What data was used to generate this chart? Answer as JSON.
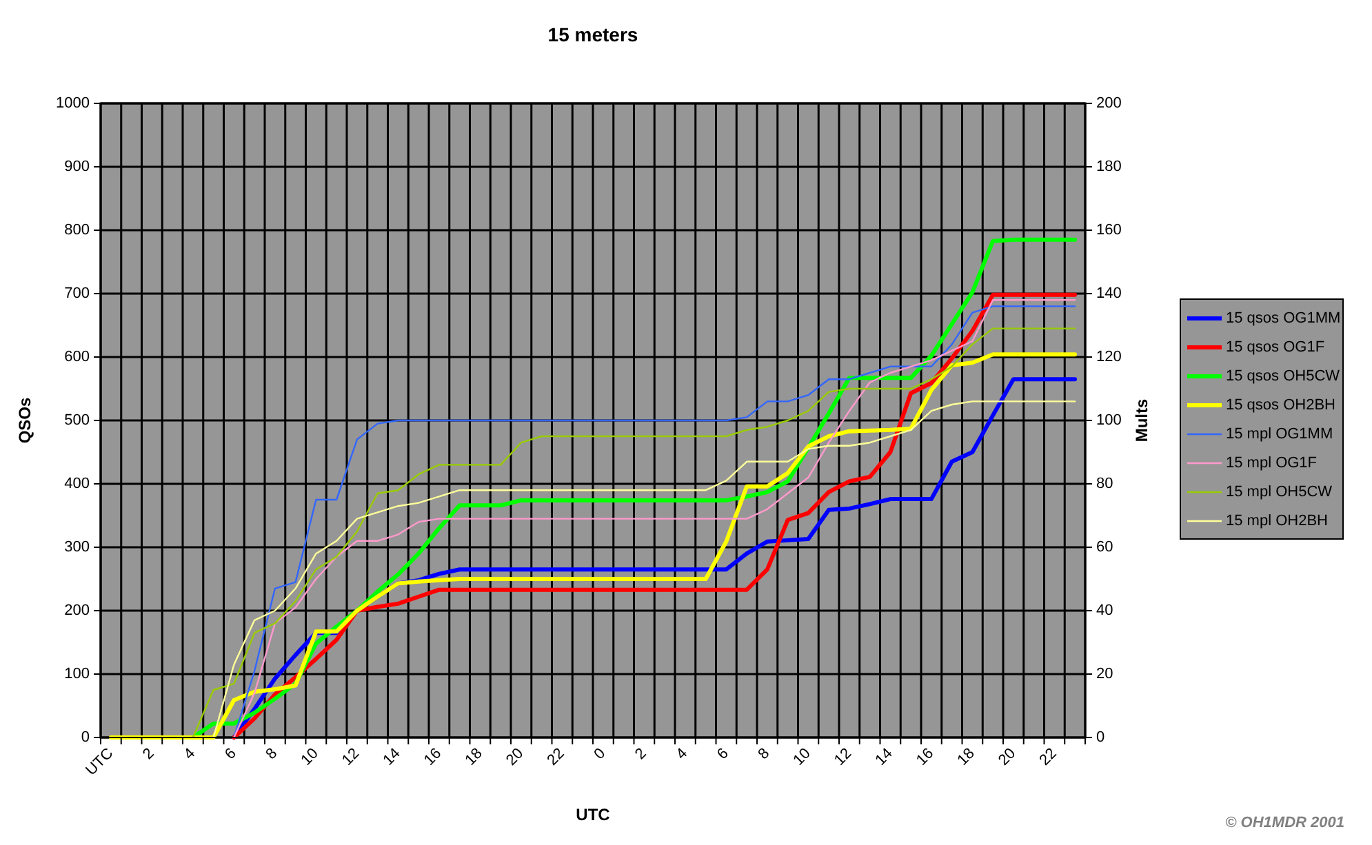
{
  "chart_data": {
    "type": "line",
    "title": "15 meters",
    "xlabel": "UTC",
    "ylabel": "QSOs",
    "y2label": "Mults",
    "annotations": [
      "© OH1MDR 2001"
    ],
    "categories": [
      "UTC",
      null,
      "2",
      null,
      "4",
      null,
      "6",
      null,
      "8",
      null,
      "10",
      null,
      "12",
      null,
      "14",
      null,
      "16",
      null,
      "18",
      null,
      "20",
      null,
      "22",
      null,
      "0",
      null,
      "2",
      null,
      "4",
      null,
      "6",
      null,
      "8",
      null,
      "10",
      null,
      "12",
      null,
      "14",
      null,
      "16",
      null,
      "18",
      null,
      "20",
      null,
      "22",
      null
    ],
    "ylim": [
      0,
      1000
    ],
    "yticks": [
      0,
      100,
      200,
      300,
      400,
      500,
      600,
      700,
      800,
      900,
      1000
    ],
    "y2lim": [
      0,
      200
    ],
    "y2ticks": [
      0,
      20,
      40,
      60,
      80,
      100,
      120,
      140,
      160,
      180,
      200
    ],
    "grid": true,
    "legend": "right",
    "series": [
      {
        "name": "15 qsos OG1MM",
        "color": "#0000ff",
        "axis": "y",
        "values": [
          null,
          null,
          null,
          null,
          null,
          null,
          0,
          45,
          93,
          130,
          165,
          165,
          200,
          222,
          243,
          248,
          258,
          265,
          265,
          265,
          265,
          265,
          265,
          265,
          265,
          265,
          265,
          265,
          265,
          265,
          265,
          290,
          309,
          311,
          313,
          359,
          361,
          368,
          376,
          376,
          376,
          435,
          450,
          508,
          565,
          565,
          565,
          565
        ]
      },
      {
        "name": "15 qsos OG1F",
        "color": "#ff0000",
        "axis": "y",
        "values": [
          null,
          null,
          null,
          null,
          null,
          null,
          0,
          30,
          68,
          95,
          124,
          154,
          200,
          206,
          211,
          222,
          233,
          233,
          233,
          233,
          233,
          233,
          233,
          233,
          233,
          233,
          233,
          233,
          233,
          233,
          233,
          233,
          265,
          343,
          354,
          387,
          404,
          411,
          450,
          543,
          559,
          598,
          641,
          698,
          698,
          698,
          698,
          698
        ]
      },
      {
        "name": "15 qsos OH5CW",
        "color": "#00ff00",
        "axis": "y",
        "values": [
          null,
          null,
          null,
          null,
          0,
          22,
          22,
          39,
          61,
          85,
          148,
          175,
          200,
          230,
          257,
          290,
          330,
          366,
          366,
          366,
          374,
          374,
          374,
          374,
          374,
          374,
          374,
          374,
          374,
          374,
          374,
          380,
          387,
          404,
          457,
          511,
          567,
          567,
          567,
          567,
          602,
          652,
          702,
          783,
          785,
          785,
          785,
          785
        ]
      },
      {
        "name": "15 qsos OH2BH",
        "color": "#ffff00",
        "axis": "y",
        "values": [
          0,
          0,
          0,
          0,
          0,
          0,
          59,
          72,
          76,
          82,
          167,
          167,
          200,
          222,
          243,
          246,
          248,
          250,
          250,
          250,
          250,
          250,
          250,
          250,
          250,
          250,
          250,
          250,
          250,
          250,
          309,
          396,
          396,
          417,
          459,
          475,
          483,
          484,
          485,
          487,
          548,
          587,
          591,
          604,
          604,
          604,
          604,
          604
        ]
      },
      {
        "name": "15 mpl OG1MM",
        "color": "#3366ff",
        "axis": "y2",
        "values": [
          null,
          null,
          null,
          null,
          null,
          null,
          0,
          21,
          47,
          49,
          75,
          75,
          94,
          99,
          100,
          100,
          100,
          100,
          100,
          100,
          100,
          100,
          100,
          100,
          100,
          100,
          100,
          100,
          100,
          100,
          100,
          101,
          106,
          106,
          108,
          113,
          113,
          115,
          117,
          117,
          117,
          124,
          134,
          136,
          136,
          136,
          136,
          136
        ]
      },
      {
        "name": "15 mpl OG1F",
        "color": "#ff99cc",
        "axis": "y2",
        "values": [
          null,
          null,
          null,
          null,
          null,
          null,
          0,
          14,
          36,
          41,
          50,
          57,
          62,
          62,
          64,
          68,
          69,
          69,
          69,
          69,
          69,
          69,
          69,
          69,
          69,
          69,
          69,
          69,
          69,
          69,
          69,
          69,
          72,
          77,
          82,
          93,
          103,
          112,
          115,
          117,
          119,
          122,
          125,
          138,
          138,
          138,
          138,
          138
        ]
      },
      {
        "name": "15 mpl OH5CW",
        "color": "#99cc00",
        "axis": "y2",
        "values": [
          null,
          null,
          null,
          null,
          0,
          15,
          17,
          33,
          36,
          43,
          53,
          57,
          65,
          77,
          78,
          83,
          86,
          86,
          86,
          86,
          93,
          95,
          95,
          95,
          95,
          95,
          95,
          95,
          95,
          95,
          95,
          97,
          98,
          100,
          103,
          109,
          110,
          110,
          110,
          110,
          113,
          117,
          124,
          129,
          129,
          129,
          129,
          129
        ]
      },
      {
        "name": "15 mpl OH2BH",
        "color": "#ffff99",
        "axis": "y2",
        "values": [
          null,
          null,
          null,
          null,
          null,
          0,
          23,
          37,
          40,
          47,
          58,
          62,
          69,
          71,
          73,
          74,
          76,
          78,
          78,
          78,
          78,
          78,
          78,
          78,
          78,
          78,
          78,
          78,
          78,
          78,
          81,
          87,
          87,
          87,
          91,
          92,
          92,
          93,
          95,
          97,
          103,
          105,
          106,
          106,
          106,
          106,
          106,
          106
        ]
      }
    ]
  }
}
